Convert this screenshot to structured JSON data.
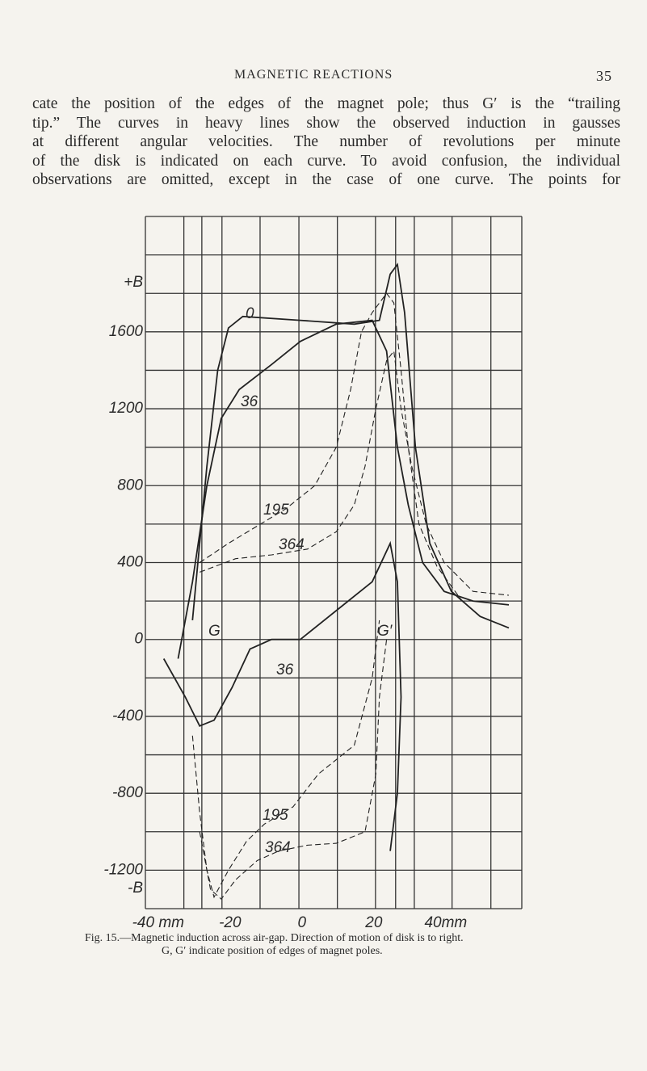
{
  "header": {
    "title": "MAGNETIC REACTIONS",
    "page": "35"
  },
  "paragraph_lines": [
    "cate the position of the edges of the magnet pole; thus G′ is the “trailing",
    "tip.” The curves in heavy lines show the observed induction in gausses",
    "at different angular velocities. The number of revolutions per minute",
    "of the disk is indicated on each curve. To avoid confusion, the individual",
    "observations are omitted, except in the case of one curve. The points for"
  ],
  "chart_data": {
    "type": "line",
    "y_top_label": "+B",
    "y_bottom_label": "-B",
    "xlim": [
      -43.1,
      61.6
    ],
    "ylim": [
      -1400,
      2200
    ],
    "xticks": [
      {
        "value": -40,
        "label": "-40 mm"
      },
      -20,
      0,
      20,
      {
        "value": 40,
        "label": "40mm"
      }
    ],
    "yticks": [
      1600,
      1200,
      800,
      400,
      0,
      -400,
      -800,
      -1200
    ],
    "xgrid": [
      -43.1,
      -32.4,
      -27.4,
      -21.8,
      -11.2,
      -0.4,
      10.3,
      20.9,
      26.5,
      31.7,
      42.2,
      53.0,
      61.6
    ],
    "ygrid": [
      2200,
      2000,
      1800,
      1600,
      1400,
      1200,
      1000,
      800,
      600,
      400,
      200,
      0,
      -200,
      -400,
      -600,
      -800,
      -1000,
      -1200,
      -1400
    ],
    "annotations": [
      "G",
      "G′"
    ],
    "series": [
      {
        "name": "0",
        "color": "#222222",
        "style": "solid",
        "x": [
          -30,
          -26,
          -23,
          -20,
          -16,
          0,
          15,
          22,
          25,
          27,
          29,
          32,
          36,
          42,
          50,
          58
        ],
        "values": [
          100,
          900,
          1400,
          1620,
          1680,
          1660,
          1640,
          1660,
          1900,
          1950,
          1700,
          1000,
          500,
          250,
          120,
          60
        ]
      },
      {
        "name": "36",
        "color": "#222222",
        "style": "solid",
        "x": [
          -34,
          -30,
          -26,
          -22,
          -17,
          -8,
          0,
          10,
          20,
          24,
          27,
          30,
          34,
          40,
          48,
          58
        ],
        "values": [
          -100,
          300,
          800,
          1150,
          1300,
          1430,
          1550,
          1640,
          1660,
          1500,
          1000,
          700,
          400,
          250,
          200,
          180
        ]
      },
      {
        "name": "195",
        "color": "#222222",
        "style": "dashed",
        "x": [
          -28,
          -20,
          -12,
          -4,
          4,
          10,
          14,
          17,
          20,
          22,
          24,
          26,
          28,
          30,
          33,
          38,
          45
        ],
        "values": [
          400,
          500,
          590,
          680,
          800,
          1000,
          1300,
          1600,
          1700,
          1750,
          1800,
          1750,
          1400,
          1000,
          600,
          380,
          200
        ]
      },
      {
        "name": "364",
        "color": "#222222",
        "style": "dashed",
        "x": [
          -28,
          -18,
          -8,
          2,
          10,
          15,
          18,
          21,
          24,
          26,
          28,
          31,
          35,
          40,
          48,
          58
        ],
        "values": [
          350,
          420,
          440,
          470,
          560,
          700,
          900,
          1200,
          1450,
          1500,
          1200,
          900,
          600,
          400,
          250,
          230
        ]
      },
      {
        "name": "36",
        "color": "#222222",
        "style": "solid",
        "x": [
          -38,
          -32,
          -28,
          -24,
          -19,
          -14,
          -8,
          0,
          10,
          20,
          25,
          27,
          28,
          27,
          25
        ],
        "values": [
          -100,
          -300,
          -450,
          -420,
          -250,
          -50,
          0,
          0,
          150,
          300,
          500,
          300,
          -300,
          -800,
          -1100
        ]
      },
      {
        "name": "195",
        "color": "#222222",
        "style": "dashed",
        "x": [
          -30,
          -28,
          -26,
          -24,
          -20,
          -15,
          -10,
          -2,
          5,
          15,
          20,
          22
        ],
        "values": [
          -500,
          -900,
          -1200,
          -1340,
          -1200,
          -1050,
          -960,
          -870,
          -700,
          -550,
          -200,
          100
        ]
      },
      {
        "name": "364",
        "color": "#222222",
        "style": "dashed",
        "x": [
          -28,
          -25,
          -22,
          -18,
          -12,
          -6,
          2,
          10,
          18,
          21,
          22,
          24
        ],
        "values": [
          -1000,
          -1300,
          -1350,
          -1250,
          -1150,
          -1100,
          -1070,
          -1060,
          -1000,
          -700,
          -300,
          0
        ]
      }
    ]
  },
  "caption": [
    "Fig. 15.—Magnetic induction across air-gap. Direction of motion of disk is to right.",
    "G, G′ indicate position of edges of magnet poles."
  ]
}
